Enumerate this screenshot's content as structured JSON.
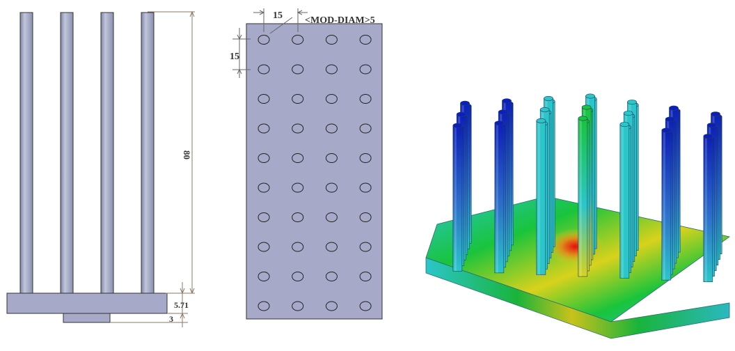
{
  "colors": {
    "part_gray": "#a3a9c4",
    "plate_gray": "#a6a9c7",
    "outline": "#333333",
    "dimension_line": "#8a7a66",
    "thermal_blue": "#0c1fb8",
    "thermal_cyan": "#2bc6c9",
    "thermal_green": "#19c43c",
    "thermal_yellow": "#d8d21c",
    "thermal_orange": "#e08a1a",
    "thermal_red": "#e31010"
  },
  "side_view": {
    "fin_count": 4,
    "height_label": "80",
    "base_label": "5.71",
    "foot_label": "3"
  },
  "top_view": {
    "rows": 10,
    "columns": 4,
    "pitch_x_label": "15",
    "pitch_y_label": "15",
    "diameter_label": "<MOD-DIAM>5"
  },
  "thermal_view": {
    "rows": 6,
    "columns": 7
  }
}
